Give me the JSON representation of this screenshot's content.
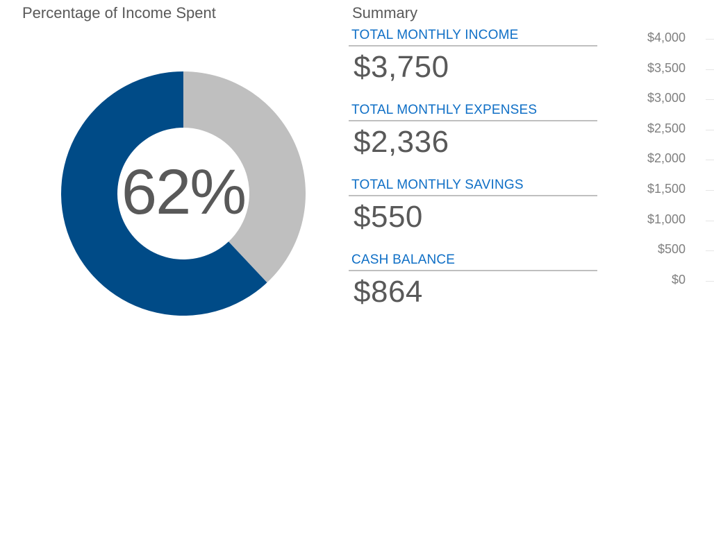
{
  "donut": {
    "title": "Percentage of Income Spent",
    "center_label": "62%",
    "spent_fraction": 0.62,
    "colors": {
      "spent": "#004b87",
      "remaining": "#bfbfbf"
    }
  },
  "summary": {
    "title": "Summary",
    "metrics": [
      {
        "label": "TOTAL MONTHLY INCOME",
        "value": "$3,750"
      },
      {
        "label": "TOTAL MONTHLY EXPENSES",
        "value": "$2,336"
      },
      {
        "label": "TOTAL MONTHLY SAVINGS",
        "value": "$550"
      },
      {
        "label": "CASH BALANCE",
        "value": "$864"
      }
    ],
    "colors": {
      "label": "#0f6fc6",
      "value": "#595959",
      "rule": "#bfbfbf"
    }
  },
  "chart_data": {
    "type": "bar",
    "categories": [],
    "series": [],
    "yticks": [
      "$4,000",
      "$3,500",
      "$3,000",
      "$2,500",
      "$2,000",
      "$1,500",
      "$1,000",
      "$500",
      "$0"
    ],
    "ylim": [
      0,
      4000
    ]
  }
}
